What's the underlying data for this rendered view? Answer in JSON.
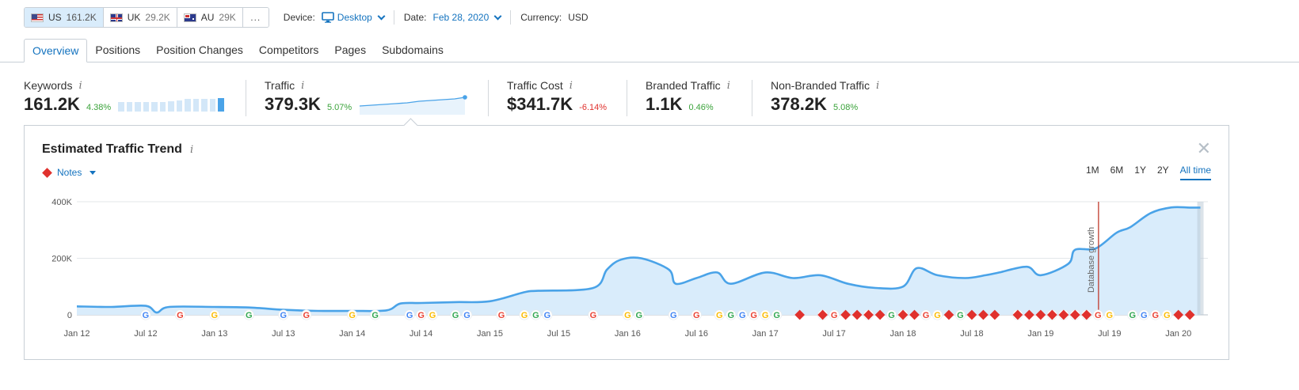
{
  "databases": [
    {
      "code": "US",
      "count": "161.2K",
      "flag": "us-flag-icon",
      "active": true
    },
    {
      "code": "UK",
      "count": "29.2K",
      "flag": "uk-flag-icon",
      "active": false
    },
    {
      "code": "AU",
      "count": "29K",
      "flag": "au-flag-icon",
      "active": false
    }
  ],
  "more_label": "...",
  "device": {
    "label": "Device:",
    "value": "Desktop",
    "icon": "monitor-icon"
  },
  "date": {
    "label": "Date:",
    "value": "Feb 28, 2020"
  },
  "currency": {
    "label": "Currency:",
    "value": "USD"
  },
  "tabs": [
    "Overview",
    "Positions",
    "Position Changes",
    "Competitors",
    "Pages",
    "Subdomains"
  ],
  "active_tab": "Overview",
  "metrics": {
    "keywords": {
      "label": "Keywords",
      "value": "161.2K",
      "change": "4.38%",
      "trend": "up"
    },
    "traffic": {
      "label": "Traffic",
      "value": "379.3K",
      "change": "5.07%",
      "trend": "up"
    },
    "traffic_cost": {
      "label": "Traffic Cost",
      "value": "$341.7K",
      "change": "-6.14%",
      "trend": "down"
    },
    "branded": {
      "label": "Branded Traffic",
      "value": "1.1K",
      "change": "0.46%",
      "trend": "up"
    },
    "non_branded": {
      "label": "Non-Branded Traffic",
      "value": "378.2K",
      "change": "5.08%",
      "trend": "up"
    }
  },
  "info_glyph": "i",
  "panel": {
    "title": "Estimated Traffic Trend",
    "notes_label": "Notes",
    "close_glyph": "✕",
    "periods": [
      "1M",
      "6M",
      "1Y",
      "2Y",
      "All time"
    ],
    "active_period": "All time"
  },
  "colors": {
    "accent": "#1473bf",
    "line": "#4aa3e8",
    "area": "#d9ecfb",
    "positive": "#3ba33b",
    "negative": "#e0312d"
  },
  "chart_data": {
    "type": "area",
    "title": "Estimated Traffic Trend",
    "x_ticks": [
      "Jan 12",
      "Jul 12",
      "Jan 13",
      "Jul 13",
      "Jan 14",
      "Jul 14",
      "Jan 15",
      "Jul 15",
      "Jan 16",
      "Jul 16",
      "Jan 17",
      "Jul 17",
      "Jan 18",
      "Jul 18",
      "Jan 19",
      "Jul 19",
      "Jan 20"
    ],
    "y_ticks": [
      "0",
      "200K",
      "400K"
    ],
    "ylim": [
      0,
      400000
    ],
    "grid": true,
    "annotation": {
      "label": "Database growth",
      "x": 2019.42
    },
    "series": [
      {
        "x": [
          2012.0,
          2012.25,
          2012.5,
          2012.58,
          2012.67,
          2013.0,
          2013.25,
          2013.5,
          2013.75,
          2014.0,
          2014.25,
          2014.35,
          2014.5,
          2014.75,
          2015.0,
          2015.25,
          2015.35,
          2015.75,
          2015.85,
          2015.95,
          2016.1,
          2016.3,
          2016.35,
          2016.5,
          2016.65,
          2016.75,
          2017.0,
          2017.2,
          2017.4,
          2017.6,
          2017.8,
          2018.0,
          2018.1,
          2018.25,
          2018.45,
          2018.6,
          2018.7,
          2018.9,
          2019.0,
          2019.2,
          2019.25,
          2019.4,
          2019.55,
          2019.65,
          2019.8,
          2019.95,
          2020.08,
          2020.16
        ],
        "values": [
          30000,
          28000,
          32000,
          8000,
          28000,
          28000,
          26000,
          18000,
          14000,
          14000,
          16000,
          40000,
          42000,
          45000,
          48000,
          80000,
          85000,
          95000,
          160000,
          195000,
          200000,
          160000,
          110000,
          130000,
          150000,
          110000,
          150000,
          130000,
          140000,
          110000,
          95000,
          100000,
          165000,
          140000,
          130000,
          140000,
          150000,
          170000,
          140000,
          180000,
          230000,
          235000,
          290000,
          310000,
          360000,
          380000,
          379300,
          379300
        ]
      }
    ],
    "google_update_markers": [
      "Jul 12",
      "Oct 12",
      "Jan 13",
      "Apr 13",
      "Jul 13",
      "Sep 13",
      "Jan 14",
      "Mar 14",
      "Jun 14",
      "Jul 14",
      "Aug 14",
      "Oct 14",
      "Nov 14",
      "Feb 15",
      "Apr 15",
      "May 15",
      "Jun 15",
      "Oct 15",
      "Jan 16",
      "Feb 16",
      "May 16",
      "Jul 16",
      "Sep 16",
      "Oct 16",
      "Nov 16",
      "Dec 16",
      "Jan 17",
      "Feb 17",
      "Jun 17",
      "Jul 17",
      "Oct 17",
      "Dec 17",
      "Jan 18",
      "Mar 18",
      "Apr 18",
      "Jun 18",
      "Nov 18",
      "Feb 19",
      "Mar 19",
      "Apr 19",
      "May 19",
      "Jun 19",
      "Jul 19",
      "Sep 19",
      "Oct 19",
      "Nov 19",
      "Dec 19"
    ],
    "note_markers": [
      "Apr 17",
      "Jun 17",
      "Aug 17",
      "Sep 17",
      "Oct 17",
      "Nov 17",
      "Jan 18",
      "Feb 18",
      "May 18",
      "Jul 18",
      "Aug 18",
      "Sep 18",
      "Nov 18",
      "Dec 18",
      "Jan 19",
      "Feb 19",
      "Mar 19",
      "Apr 19",
      "May 19",
      "Jan 20",
      "Feb 20"
    ]
  }
}
